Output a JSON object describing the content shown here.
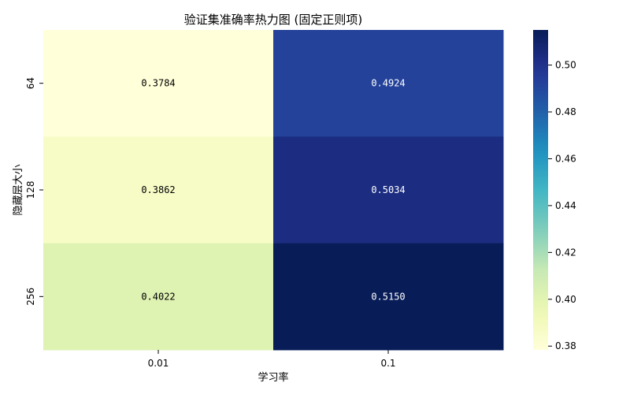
{
  "chart_data": {
    "type": "heatmap",
    "title": "验证集准确率热力图 (固定正则项)",
    "xlabel": "学习率",
    "ylabel": "隐藏层大小",
    "x_categories": [
      "0.01",
      "0.1"
    ],
    "y_categories": [
      "64",
      "128",
      "256"
    ],
    "values": [
      [
        0.3784,
        0.4924
      ],
      [
        0.3862,
        0.5034
      ],
      [
        0.4022,
        0.515
      ]
    ],
    "value_labels": [
      [
        "0.3784",
        "0.4924"
      ],
      [
        "0.3862",
        "0.5034"
      ],
      [
        "0.4022",
        "0.5150"
      ]
    ],
    "colormap": "YlGnBu",
    "colorbar": {
      "vmin": 0.3784,
      "vmax": 0.515,
      "ticks": [
        0.38,
        0.4,
        0.42,
        0.44,
        0.46,
        0.48,
        0.5
      ],
      "tick_labels": [
        "0.38",
        "0.40",
        "0.42",
        "0.44",
        "0.46",
        "0.48",
        "0.50"
      ]
    },
    "grid": false,
    "colors": {
      "low": "#ffffd9",
      "high": "#081d58",
      "light_text": "#ffffff",
      "dark_text": "#000000"
    }
  }
}
